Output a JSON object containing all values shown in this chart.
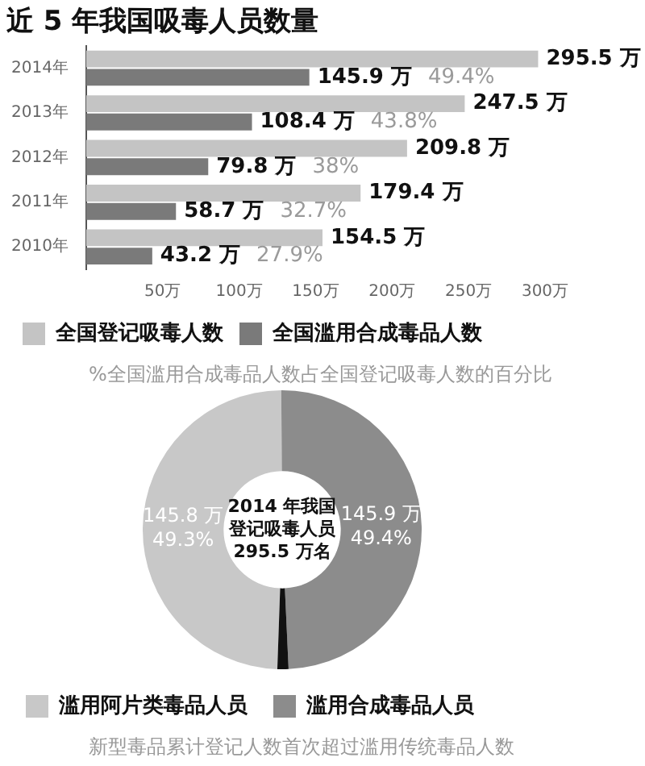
{
  "chart_data": [
    {
      "type": "bar",
      "orientation": "horizontal",
      "title": "近 5 年我国吸毒人员数量",
      "categories": [
        "2014年",
        "2013年",
        "2012年",
        "2011年",
        "2010年"
      ],
      "series": [
        {
          "name": "全国登记吸毒人数",
          "color": "#c4c4c4",
          "values": [
            295.5,
            247.5,
            209.8,
            179.4,
            154.5
          ],
          "value_labels": [
            "295.5 万",
            "247.5 万",
            "209.8 万",
            "179.4 万",
            "154.5 万"
          ]
        },
        {
          "name": "全国滥用合成毒品人数",
          "color": "#7a7a7a",
          "values": [
            145.9,
            108.4,
            79.8,
            58.7,
            43.2
          ],
          "value_labels": [
            "145.9 万",
            "108.4 万",
            "79.8 万",
            "58.7 万",
            "43.2 万"
          ]
        }
      ],
      "xlim": [
        0,
        300
      ],
      "xticks": [
        {
          "value": 50,
          "label": "50万"
        },
        {
          "value": 100,
          "label": "100万"
        },
        {
          "value": 150,
          "label": "150万"
        },
        {
          "value": 200,
          "label": "200万"
        },
        {
          "value": 250,
          "label": "250万"
        },
        {
          "value": 300,
          "label": "300万"
        }
      ],
      "legend": "bottom",
      "annotations": [
        "49.4%",
        "43.8%",
        "38%",
        "32.7%",
        "27.9%",
        "%全国滥用合成毒品人数占全国登记吸毒人数的百分比"
      ]
    },
    {
      "type": "donut",
      "title": "2014 年我国登记吸毒人员295.5 万名",
      "categories": [
        "滥用阿片类毒品人员",
        "滥用合成毒品人员",
        null
      ],
      "values": [
        145.8,
        145.9,
        3.8
      ],
      "colors": [
        "#c8c8c8",
        "#8c8c8c",
        "#111111"
      ],
      "value_labels": [
        "145.8 万\n49.3%",
        "145.9 万\n49.4%",
        null
      ],
      "legend": "bottom",
      "annotations": [
        "新型毒品累计登记人数首次超过滥用传统毒品人数"
      ]
    }
  ]
}
